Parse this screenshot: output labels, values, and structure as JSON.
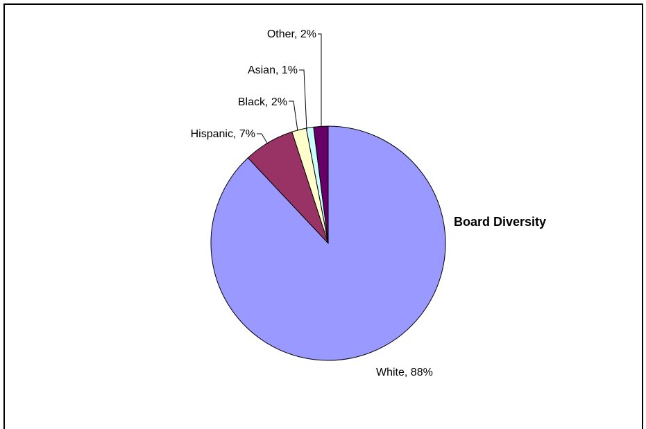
{
  "chart_data": {
    "type": "pie",
    "title": "Board Diversity",
    "legend_position": "right",
    "slices": [
      {
        "label": "White, 88%",
        "category": "White",
        "value": 88,
        "color": "#9999ff"
      },
      {
        "label": "Hispanic, 7%",
        "category": "Hispanic",
        "value": 7,
        "color": "#993366"
      },
      {
        "label": "Black, 2%",
        "category": "Black",
        "value": 2,
        "color": "#ffffcc"
      },
      {
        "label": "Asian, 1%",
        "category": "Asian",
        "value": 1,
        "color": "#ccffff"
      },
      {
        "label": "Other, 2%",
        "category": "Other",
        "value": 2,
        "color": "#660066"
      }
    ]
  }
}
